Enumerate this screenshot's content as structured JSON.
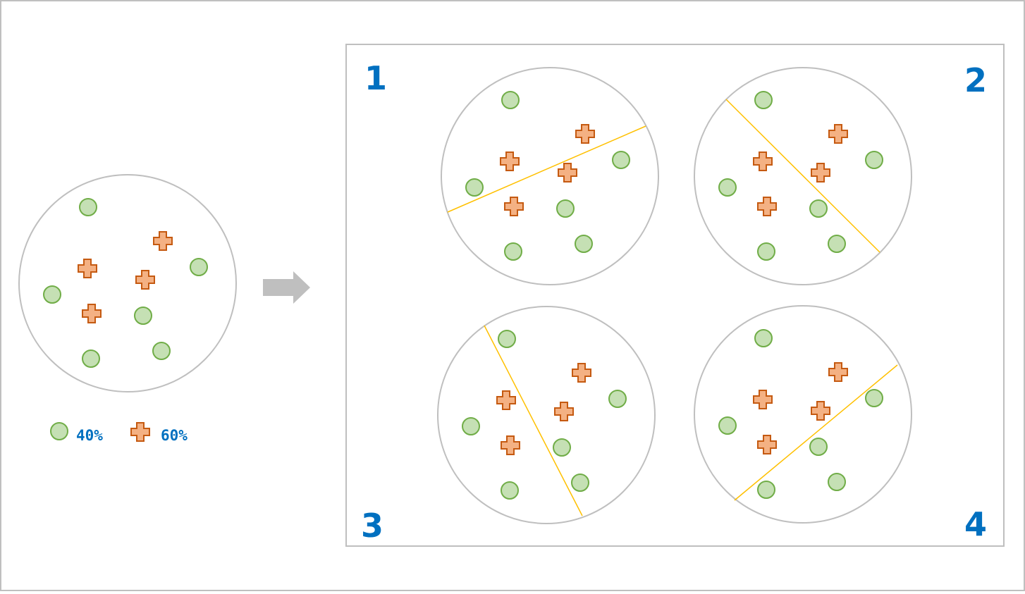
{
  "colors": {
    "circle_fill": "#c5e0b4",
    "circle_stroke": "#70ad47",
    "cross_fill": "#f4b183",
    "cross_stroke": "#c55a11",
    "boundary": "#bfbfbf",
    "split_line": "#ffc000",
    "arrow": "#bfbfbf",
    "label": "#0070c0"
  },
  "legend": {
    "circle_label": "40%",
    "cross_label": "60%"
  },
  "panels": [
    {
      "number": "1"
    },
    {
      "number": "2"
    },
    {
      "number": "3"
    },
    {
      "number": "4"
    }
  ]
}
